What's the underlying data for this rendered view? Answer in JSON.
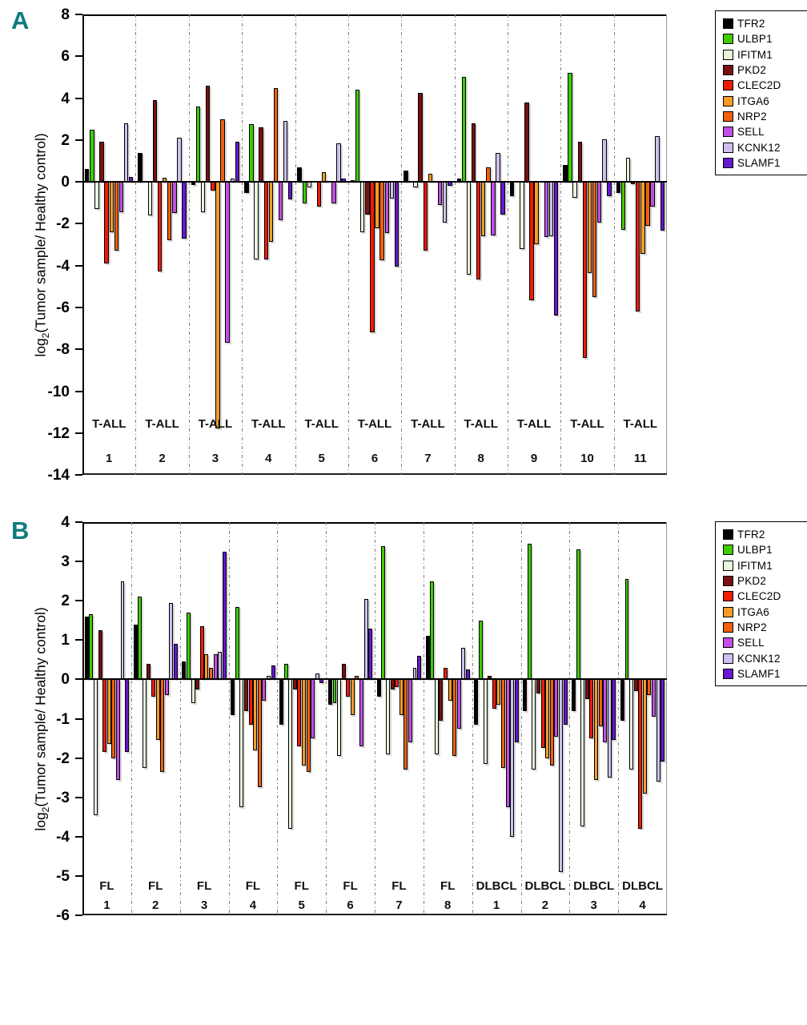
{
  "figure": {
    "panel_a_label": "A",
    "panel_b_label": "B",
    "ylabel_prefix": "log",
    "ylabel_sub": "2",
    "ylabel_rest": "(Tumor sample/ Healthy control)"
  },
  "genes": [
    {
      "name": "TFR2",
      "color": "#000000"
    },
    {
      "name": "ULBP1",
      "color": "#3ecc00"
    },
    {
      "name": "IFITM1",
      "color": "#e6f5dc"
    },
    {
      "name": "PKD2",
      "color": "#7a0f0f"
    },
    {
      "name": "CLEC2D",
      "color": "#ee1b07"
    },
    {
      "name": "ITGA6",
      "color": "#f79b28"
    },
    {
      "name": "NRP2",
      "color": "#f0600e"
    },
    {
      "name": "SELL",
      "color": "#c14fe3"
    },
    {
      "name": "KCNK12",
      "color": "#cfbfee"
    },
    {
      "name": "SLAMF1",
      "color": "#6518cf"
    }
  ],
  "chart_data": [
    {
      "panel": "A",
      "type": "bar",
      "ylabel": "log2(Tumor sample/ Healthy control)",
      "ylim": [
        -14,
        8
      ],
      "ytick_step": 2,
      "grid": false,
      "legend_position": "outside-top-right",
      "categories": [
        {
          "line1": "T-ALL",
          "line2": "1"
        },
        {
          "line1": "T-ALL",
          "line2": "2"
        },
        {
          "line1": "T-ALL",
          "line2": "3"
        },
        {
          "line1": "T-ALL",
          "line2": "4"
        },
        {
          "line1": "T-ALL",
          "line2": "5"
        },
        {
          "line1": "T-ALL",
          "line2": "6"
        },
        {
          "line1": "T-ALL",
          "line2": "7"
        },
        {
          "line1": "T-ALL",
          "line2": "8"
        },
        {
          "line1": "T-ALL",
          "line2": "9"
        },
        {
          "line1": "T-ALL",
          "line2": "10"
        },
        {
          "line1": "T-ALL",
          "line2": "11"
        }
      ],
      "series": [
        {
          "name": "TFR2",
          "values": [
            0.6,
            1.4,
            -0.15,
            -0.55,
            0.7,
            0.1,
            0.55,
            0.15,
            -0.7,
            0.8,
            -0.55
          ]
        },
        {
          "name": "ULBP1",
          "values": [
            2.5,
            0,
            3.6,
            2.75,
            -1.05,
            4.4,
            0,
            5.0,
            0,
            5.2,
            -2.3
          ]
        },
        {
          "name": "IFITM1",
          "values": [
            -1.3,
            -1.6,
            -1.45,
            -3.7,
            -0.25,
            -2.4,
            -0.25,
            -4.45,
            -3.2,
            -0.75,
            1.15
          ]
        },
        {
          "name": "PKD2",
          "values": [
            1.9,
            3.9,
            4.6,
            2.6,
            0,
            -1.55,
            4.25,
            2.8,
            3.8,
            1.9,
            -0.1
          ]
        },
        {
          "name": "CLEC2D",
          "values": [
            -3.9,
            -4.3,
            -0.4,
            -3.7,
            -1.2,
            -7.2,
            -3.3,
            -4.65,
            -5.65,
            -8.4,
            -6.2
          ]
        },
        {
          "name": "ITGA6",
          "values": [
            -2.4,
            0.2,
            -11.8,
            -2.85,
            0.45,
            -2.2,
            0.4,
            -2.6,
            -3.0,
            -4.35,
            -3.45
          ]
        },
        {
          "name": "NRP2",
          "values": [
            -3.3,
            -2.8,
            3.0,
            4.5,
            0,
            -3.75,
            0,
            0.7,
            0,
            -5.5,
            -2.1
          ]
        },
        {
          "name": "SELL",
          "values": [
            -1.45,
            -1.5,
            -7.7,
            -1.85,
            -1.05,
            -2.45,
            -1.1,
            -2.55,
            -2.65,
            -1.95,
            -1.2
          ]
        },
        {
          "name": "KCNK12",
          "values": [
            2.8,
            2.1,
            0.15,
            2.9,
            1.85,
            -0.8,
            -1.95,
            1.4,
            -2.6,
            2.05,
            2.2
          ]
        },
        {
          "name": "SLAMF1",
          "values": [
            0.25,
            -2.7,
            1.9,
            -0.85,
            0.15,
            -4.05,
            -0.2,
            -1.55,
            -6.4,
            -0.7,
            -2.35
          ]
        }
      ]
    },
    {
      "panel": "B",
      "type": "bar",
      "ylabel": "log2(Tumor sample/ Healthy control)",
      "ylim": [
        -6,
        4
      ],
      "ytick_step": 1,
      "grid": false,
      "legend_position": "outside-top-right",
      "categories": [
        {
          "line1": "FL",
          "line2": "1"
        },
        {
          "line1": "FL",
          "line2": "2"
        },
        {
          "line1": "FL",
          "line2": "3"
        },
        {
          "line1": "FL",
          "line2": "4"
        },
        {
          "line1": "FL",
          "line2": "5"
        },
        {
          "line1": "FL",
          "line2": "6"
        },
        {
          "line1": "FL",
          "line2": "7"
        },
        {
          "line1": "FL",
          "line2": "8"
        },
        {
          "line1": "DLBCL",
          "line2": "1"
        },
        {
          "line1": "DLBCL",
          "line2": "2"
        },
        {
          "line1": "DLBCL",
          "line2": "3"
        },
        {
          "line1": "DLBCL",
          "line2": "4"
        }
      ],
      "series": [
        {
          "name": "TFR2",
          "values": [
            1.6,
            1.4,
            0.45,
            -0.9,
            -1.15,
            -0.65,
            -0.45,
            1.1,
            -1.15,
            -0.8,
            -0.8,
            -1.05
          ]
        },
        {
          "name": "ULBP1",
          "values": [
            1.65,
            2.1,
            1.7,
            1.85,
            0.4,
            -0.6,
            3.4,
            2.5,
            1.5,
            3.45,
            3.3,
            2.55
          ]
        },
        {
          "name": "IFITM1",
          "values": [
            -3.45,
            -2.25,
            -0.6,
            -3.25,
            -3.8,
            -1.95,
            -1.9,
            -1.9,
            -2.15,
            -2.3,
            -3.75,
            -2.3
          ]
        },
        {
          "name": "PKD2",
          "values": [
            1.25,
            0.4,
            -0.25,
            -0.8,
            -0.25,
            0.4,
            -0.25,
            -1.05,
            0.1,
            -0.35,
            -0.5,
            -0.3
          ]
        },
        {
          "name": "CLEC2D",
          "values": [
            -1.85,
            -0.45,
            1.35,
            -1.15,
            -1.7,
            -0.45,
            -0.2,
            0.3,
            -0.75,
            -1.75,
            -1.5,
            -3.8
          ]
        },
        {
          "name": "ITGA6",
          "values": [
            -1.65,
            -1.55,
            0.65,
            -1.8,
            -2.2,
            -0.9,
            -0.9,
            -0.55,
            -0.65,
            -2.0,
            -2.55,
            -2.9
          ]
        },
        {
          "name": "NRP2",
          "values": [
            -2.0,
            -2.35,
            0.3,
            -2.75,
            -2.35,
            0.1,
            -2.3,
            -1.95,
            -2.25,
            -2.2,
            -1.2,
            -0.4
          ]
        },
        {
          "name": "SELL",
          "values": [
            -2.55,
            -0.4,
            0.65,
            -0.55,
            -1.5,
            -1.7,
            -1.6,
            -1.25,
            -3.25,
            -1.45,
            -1.6,
            -0.95
          ]
        },
        {
          "name": "KCNK12",
          "values": [
            2.5,
            1.95,
            0.7,
            0.1,
            0.15,
            2.05,
            0.3,
            0.8,
            -4.0,
            -4.9,
            -2.5,
            -2.6
          ]
        },
        {
          "name": "SLAMF1",
          "values": [
            -1.85,
            0.9,
            3.25,
            0.35,
            -0.1,
            1.3,
            0.6,
            0.25,
            -1.6,
            -1.15,
            -1.55,
            -2.1
          ]
        }
      ]
    }
  ]
}
